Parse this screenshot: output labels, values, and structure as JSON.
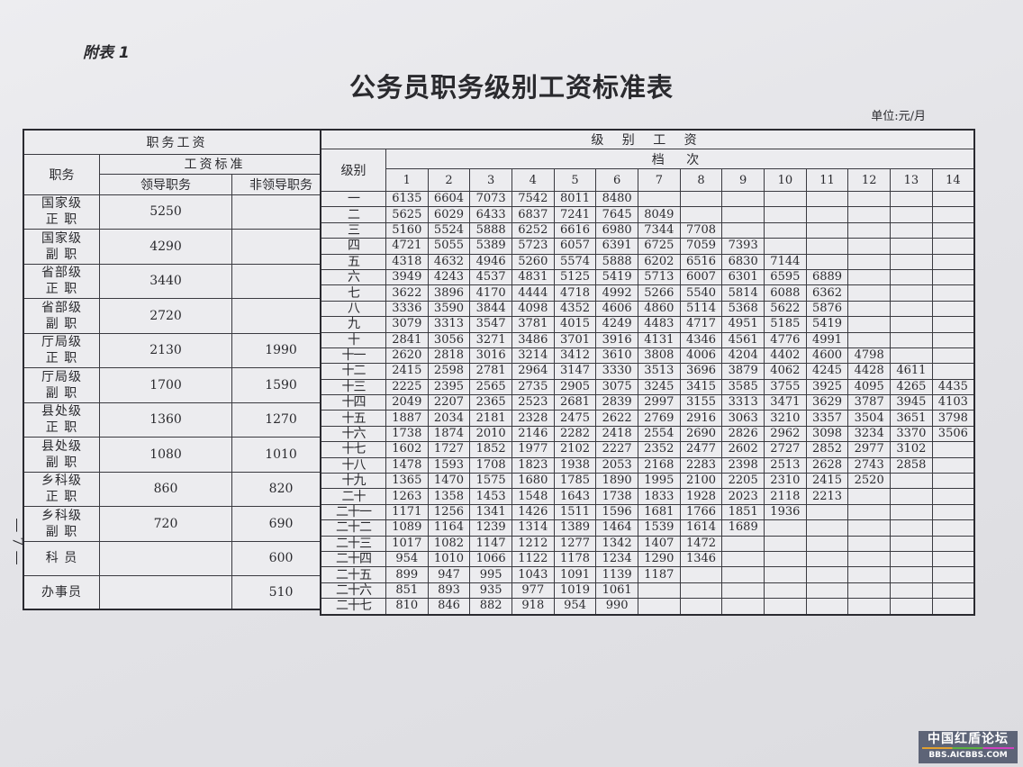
{
  "appendix_label": "附表 1",
  "title": "公务员职务级别工资标准表",
  "unit": "单位:元/月",
  "page_number": "— 7 —",
  "left_table": {
    "title": "职务工资",
    "col_position": "职务",
    "col_standard": "工资标准",
    "col_leader": "领导职务",
    "col_nonleader": "非领导职务",
    "rows": [
      {
        "position": [
          "国家级",
          "正 职"
        ],
        "leader": "5250",
        "nonleader": ""
      },
      {
        "position": [
          "国家级",
          "副 职"
        ],
        "leader": "4290",
        "nonleader": ""
      },
      {
        "position": [
          "省部级",
          "正 职"
        ],
        "leader": "3440",
        "nonleader": ""
      },
      {
        "position": [
          "省部级",
          "副 职"
        ],
        "leader": "2720",
        "nonleader": ""
      },
      {
        "position": [
          "厅局级",
          "正 职"
        ],
        "leader": "2130",
        "nonleader": "1990"
      },
      {
        "position": [
          "厅局级",
          "副 职"
        ],
        "leader": "1700",
        "nonleader": "1590"
      },
      {
        "position": [
          "县处级",
          "正 职"
        ],
        "leader": "1360",
        "nonleader": "1270"
      },
      {
        "position": [
          "县处级",
          "副 职"
        ],
        "leader": "1080",
        "nonleader": "1010"
      },
      {
        "position": [
          "乡科级",
          "正 职"
        ],
        "leader": "860",
        "nonleader": "820"
      },
      {
        "position": [
          "乡科级",
          "副 职"
        ],
        "leader": "720",
        "nonleader": "690"
      },
      {
        "position": [
          "科 员"
        ],
        "leader": "",
        "nonleader": "600"
      },
      {
        "position": [
          "办事员"
        ],
        "leader": "",
        "nonleader": "510"
      }
    ]
  },
  "right_table": {
    "title": "级 别 工 资",
    "col_level": "级别",
    "col_step": "档 次",
    "steps": [
      "1",
      "2",
      "3",
      "4",
      "5",
      "6",
      "7",
      "8",
      "9",
      "10",
      "11",
      "12",
      "13",
      "14"
    ],
    "rows": [
      {
        "level": "一",
        "values": [
          "6135",
          "6604",
          "7073",
          "7542",
          "8011",
          "8480"
        ]
      },
      {
        "level": "二",
        "values": [
          "5625",
          "6029",
          "6433",
          "6837",
          "7241",
          "7645",
          "8049"
        ]
      },
      {
        "level": "三",
        "values": [
          "5160",
          "5524",
          "5888",
          "6252",
          "6616",
          "6980",
          "7344",
          "7708"
        ]
      },
      {
        "level": "四",
        "values": [
          "4721",
          "5055",
          "5389",
          "5723",
          "6057",
          "6391",
          "6725",
          "7059",
          "7393"
        ]
      },
      {
        "level": "五",
        "values": [
          "4318",
          "4632",
          "4946",
          "5260",
          "5574",
          "5888",
          "6202",
          "6516",
          "6830",
          "7144"
        ]
      },
      {
        "level": "六",
        "values": [
          "3949",
          "4243",
          "4537",
          "4831",
          "5125",
          "5419",
          "5713",
          "6007",
          "6301",
          "6595",
          "6889"
        ]
      },
      {
        "level": "七",
        "values": [
          "3622",
          "3896",
          "4170",
          "4444",
          "4718",
          "4992",
          "5266",
          "5540",
          "5814",
          "6088",
          "6362"
        ]
      },
      {
        "level": "八",
        "values": [
          "3336",
          "3590",
          "3844",
          "4098",
          "4352",
          "4606",
          "4860",
          "5114",
          "5368",
          "5622",
          "5876"
        ]
      },
      {
        "level": "九",
        "values": [
          "3079",
          "3313",
          "3547",
          "3781",
          "4015",
          "4249",
          "4483",
          "4717",
          "4951",
          "5185",
          "5419"
        ]
      },
      {
        "level": "十",
        "values": [
          "2841",
          "3056",
          "3271",
          "3486",
          "3701",
          "3916",
          "4131",
          "4346",
          "4561",
          "4776",
          "4991"
        ]
      },
      {
        "level": "十一",
        "values": [
          "2620",
          "2818",
          "3016",
          "3214",
          "3412",
          "3610",
          "3808",
          "4006",
          "4204",
          "4402",
          "4600",
          "4798"
        ]
      },
      {
        "level": "十二",
        "values": [
          "2415",
          "2598",
          "2781",
          "2964",
          "3147",
          "3330",
          "3513",
          "3696",
          "3879",
          "4062",
          "4245",
          "4428",
          "4611"
        ]
      },
      {
        "level": "十三",
        "values": [
          "2225",
          "2395",
          "2565",
          "2735",
          "2905",
          "3075",
          "3245",
          "3415",
          "3585",
          "3755",
          "3925",
          "4095",
          "4265",
          "4435"
        ]
      },
      {
        "level": "十四",
        "values": [
          "2049",
          "2207",
          "2365",
          "2523",
          "2681",
          "2839",
          "2997",
          "3155",
          "3313",
          "3471",
          "3629",
          "3787",
          "3945",
          "4103"
        ]
      },
      {
        "level": "十五",
        "values": [
          "1887",
          "2034",
          "2181",
          "2328",
          "2475",
          "2622",
          "2769",
          "2916",
          "3063",
          "3210",
          "3357",
          "3504",
          "3651",
          "3798"
        ]
      },
      {
        "level": "十六",
        "values": [
          "1738",
          "1874",
          "2010",
          "2146",
          "2282",
          "2418",
          "2554",
          "2690",
          "2826",
          "2962",
          "3098",
          "3234",
          "3370",
          "3506"
        ]
      },
      {
        "level": "十七",
        "values": [
          "1602",
          "1727",
          "1852",
          "1977",
          "2102",
          "2227",
          "2352",
          "2477",
          "2602",
          "2727",
          "2852",
          "2977",
          "3102"
        ]
      },
      {
        "level": "十八",
        "values": [
          "1478",
          "1593",
          "1708",
          "1823",
          "1938",
          "2053",
          "2168",
          "2283",
          "2398",
          "2513",
          "2628",
          "2743",
          "2858"
        ]
      },
      {
        "level": "十九",
        "values": [
          "1365",
          "1470",
          "1575",
          "1680",
          "1785",
          "1890",
          "1995",
          "2100",
          "2205",
          "2310",
          "2415",
          "2520"
        ]
      },
      {
        "level": "二十",
        "values": [
          "1263",
          "1358",
          "1453",
          "1548",
          "1643",
          "1738",
          "1833",
          "1928",
          "2023",
          "2118",
          "2213"
        ]
      },
      {
        "level": "二十一",
        "values": [
          "1171",
          "1256",
          "1341",
          "1426",
          "1511",
          "1596",
          "1681",
          "1766",
          "1851",
          "1936"
        ]
      },
      {
        "level": "二十二",
        "values": [
          "1089",
          "1164",
          "1239",
          "1314",
          "1389",
          "1464",
          "1539",
          "1614",
          "1689"
        ]
      },
      {
        "level": "二十三",
        "values": [
          "1017",
          "1082",
          "1147",
          "1212",
          "1277",
          "1342",
          "1407",
          "1472"
        ]
      },
      {
        "level": "二十四",
        "values": [
          "954",
          "1010",
          "1066",
          "1122",
          "1178",
          "1234",
          "1290",
          "1346"
        ]
      },
      {
        "level": "二十五",
        "values": [
          "899",
          "947",
          "995",
          "1043",
          "1091",
          "1139",
          "1187"
        ]
      },
      {
        "level": "二十六",
        "values": [
          "851",
          "893",
          "935",
          "977",
          "1019",
          "1061"
        ]
      },
      {
        "level": "二十七",
        "values": [
          "810",
          "846",
          "882",
          "918",
          "954",
          "990"
        ]
      }
    ]
  },
  "watermark": {
    "line1": "中国红盾论坛",
    "line2": "BBS.AICBBS.COM"
  }
}
